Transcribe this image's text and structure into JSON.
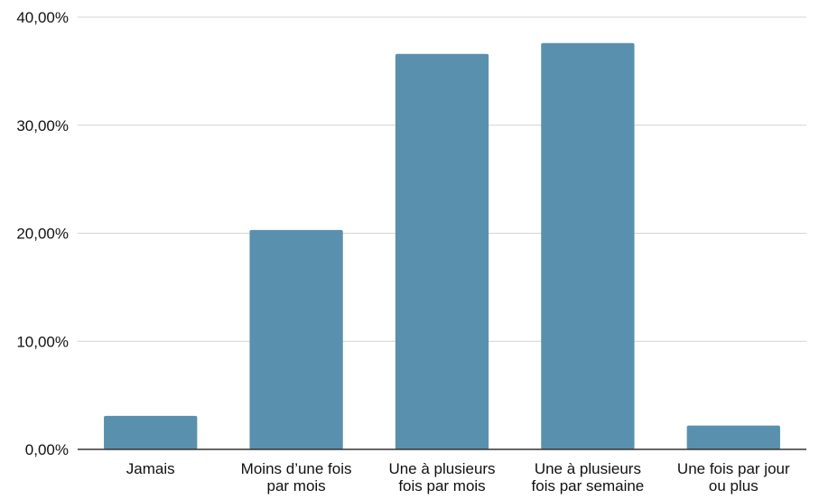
{
  "chart_data": {
    "type": "bar",
    "title": "",
    "xlabel": "",
    "ylabel": "",
    "categories": [
      [
        "Jamais"
      ],
      [
        "Moins d’une fois",
        "par mois"
      ],
      [
        "Une à plusieurs",
        "fois par mois"
      ],
      [
        "Une à plusieurs",
        "fois par semaine"
      ],
      [
        "Une fois par jour",
        "ou plus"
      ]
    ],
    "values": [
      3.1,
      20.3,
      36.6,
      37.6,
      2.2
    ],
    "ylim": [
      0,
      40
    ],
    "yticks": [
      0,
      10,
      20,
      30,
      40
    ],
    "ytick_labels": [
      "0,00%",
      "10,00%",
      "20,00%",
      "30,00%",
      "40,00%"
    ],
    "grid": true,
    "legend": "none",
    "colors": {
      "bar": "#5990ae",
      "grid": "#d4d4d4",
      "axis": "#333333",
      "text": "#111111"
    }
  }
}
